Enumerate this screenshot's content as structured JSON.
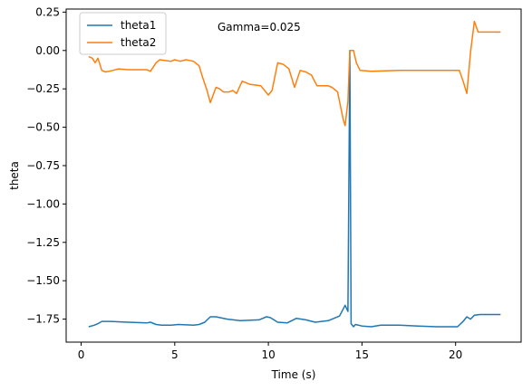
{
  "chart_data": {
    "type": "line",
    "title": "",
    "annotation": "Gamma=0.025",
    "xlabel": "Time (s)",
    "ylabel": "theta",
    "xlim": [
      -0.8,
      23.5
    ],
    "ylim": [
      -1.9,
      0.27
    ],
    "xticks": [
      0,
      5,
      10,
      15,
      20
    ],
    "xtick_labels": [
      "0",
      "5",
      "10",
      "15",
      "20"
    ],
    "yticks": [
      0.25,
      0.0,
      -0.25,
      -0.5,
      -0.75,
      -1.0,
      -1.25,
      -1.5,
      -1.75
    ],
    "ytick_labels": [
      "0.25",
      "0.00",
      "−0.25",
      "−0.50",
      "−0.75",
      "−1.00",
      "−1.25",
      "−1.50",
      "−1.75"
    ],
    "grid": false,
    "legend": "top-left",
    "series": [
      {
        "name": "theta1",
        "color": "#1f77b4",
        "points": [
          [
            0.4,
            -1.8
          ],
          [
            0.7,
            -1.79
          ],
          [
            0.9,
            -1.78
          ],
          [
            1.1,
            -1.765
          ],
          [
            1.5,
            -1.765
          ],
          [
            2.5,
            -1.77
          ],
          [
            3.5,
            -1.775
          ],
          [
            3.7,
            -1.77
          ],
          [
            4.0,
            -1.785
          ],
          [
            4.3,
            -1.79
          ],
          [
            4.8,
            -1.79
          ],
          [
            5.2,
            -1.785
          ],
          [
            6.0,
            -1.79
          ],
          [
            6.3,
            -1.785
          ],
          [
            6.6,
            -1.77
          ],
          [
            6.9,
            -1.735
          ],
          [
            7.2,
            -1.735
          ],
          [
            7.8,
            -1.75
          ],
          [
            8.5,
            -1.76
          ],
          [
            9.5,
            -1.755
          ],
          [
            9.9,
            -1.735
          ],
          [
            10.1,
            -1.74
          ],
          [
            10.5,
            -1.77
          ],
          [
            11.0,
            -1.775
          ],
          [
            11.5,
            -1.745
          ],
          [
            12.0,
            -1.755
          ],
          [
            12.5,
            -1.77
          ],
          [
            13.2,
            -1.76
          ],
          [
            13.8,
            -1.73
          ],
          [
            14.1,
            -1.66
          ],
          [
            14.25,
            -1.7
          ],
          [
            14.35,
            0.0
          ],
          [
            14.42,
            -1.78
          ],
          [
            14.55,
            -1.8
          ],
          [
            14.65,
            -1.785
          ],
          [
            15.0,
            -1.795
          ],
          [
            15.5,
            -1.8
          ],
          [
            16.0,
            -1.79
          ],
          [
            17.0,
            -1.79
          ],
          [
            18.0,
            -1.795
          ],
          [
            19.0,
            -1.8
          ],
          [
            20.1,
            -1.8
          ],
          [
            20.4,
            -1.765
          ],
          [
            20.6,
            -1.735
          ],
          [
            20.8,
            -1.75
          ],
          [
            21.0,
            -1.725
          ],
          [
            21.3,
            -1.72
          ],
          [
            22.0,
            -1.72
          ],
          [
            22.4,
            -1.72
          ]
        ]
      },
      {
        "name": "theta2",
        "color": "#ff7f0e",
        "points": [
          [
            0.4,
            -0.04
          ],
          [
            0.6,
            -0.05
          ],
          [
            0.75,
            -0.08
          ],
          [
            0.9,
            -0.05
          ],
          [
            1.1,
            -0.13
          ],
          [
            1.3,
            -0.14
          ],
          [
            1.7,
            -0.13
          ],
          [
            2.0,
            -0.12
          ],
          [
            2.5,
            -0.125
          ],
          [
            3.5,
            -0.125
          ],
          [
            3.7,
            -0.135
          ],
          [
            4.0,
            -0.08
          ],
          [
            4.2,
            -0.06
          ],
          [
            4.8,
            -0.07
          ],
          [
            5.0,
            -0.06
          ],
          [
            5.3,
            -0.07
          ],
          [
            5.6,
            -0.06
          ],
          [
            6.0,
            -0.07
          ],
          [
            6.3,
            -0.1
          ],
          [
            6.5,
            -0.18
          ],
          [
            6.7,
            -0.25
          ],
          [
            6.9,
            -0.34
          ],
          [
            7.2,
            -0.24
          ],
          [
            7.4,
            -0.25
          ],
          [
            7.6,
            -0.27
          ],
          [
            7.9,
            -0.27
          ],
          [
            8.1,
            -0.26
          ],
          [
            8.3,
            -0.28
          ],
          [
            8.6,
            -0.2
          ],
          [
            9.0,
            -0.22
          ],
          [
            9.6,
            -0.23
          ],
          [
            10.0,
            -0.29
          ],
          [
            10.2,
            -0.26
          ],
          [
            10.5,
            -0.08
          ],
          [
            10.8,
            -0.09
          ],
          [
            11.1,
            -0.12
          ],
          [
            11.4,
            -0.24
          ],
          [
            11.7,
            -0.13
          ],
          [
            12.0,
            -0.14
          ],
          [
            12.3,
            -0.16
          ],
          [
            12.6,
            -0.23
          ],
          [
            13.2,
            -0.23
          ],
          [
            13.4,
            -0.24
          ],
          [
            13.7,
            -0.27
          ],
          [
            14.0,
            -0.45
          ],
          [
            14.1,
            -0.49
          ],
          [
            14.25,
            -0.33
          ],
          [
            14.35,
            0.0
          ],
          [
            14.55,
            0.0
          ],
          [
            14.7,
            -0.08
          ],
          [
            14.9,
            -0.13
          ],
          [
            15.5,
            -0.135
          ],
          [
            17.0,
            -0.13
          ],
          [
            19.0,
            -0.13
          ],
          [
            20.2,
            -0.13
          ],
          [
            20.4,
            -0.2
          ],
          [
            20.6,
            -0.28
          ],
          [
            20.8,
            -0.01
          ],
          [
            21.0,
            0.19
          ],
          [
            21.2,
            0.12
          ],
          [
            22.0,
            0.12
          ],
          [
            22.4,
            0.12
          ]
        ]
      }
    ]
  }
}
